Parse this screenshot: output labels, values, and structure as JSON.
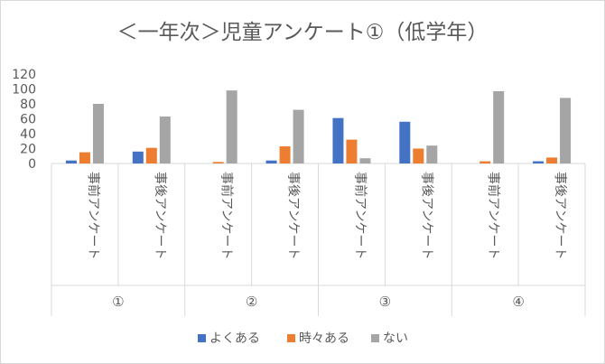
{
  "chart_data": {
    "type": "bar",
    "title": "＜一年次＞児童アンケート①（低学年）",
    "xlabel": "",
    "ylabel": "",
    "ylim": [
      0,
      120
    ],
    "yticks": [
      0,
      20,
      40,
      60,
      80,
      100,
      120
    ],
    "grid": false,
    "legend_position": "bottom",
    "groups": [
      "①",
      "②",
      "③",
      "④"
    ],
    "categories": [
      "事前アンケート",
      "事後アンケート",
      "事前アンケート",
      "事後アンケート",
      "事前アンケート",
      "事後アンケート",
      "事前アンケート",
      "事後アンケート"
    ],
    "series": [
      {
        "name": "よくある",
        "color": "#4472c4",
        "values": [
          4,
          16,
          0,
          4,
          61,
          56,
          0,
          3
        ]
      },
      {
        "name": "時々ある",
        "color": "#ed7d31",
        "values": [
          15,
          21,
          2,
          23,
          32,
          20,
          3,
          8
        ]
      },
      {
        "name": "ない",
        "color": "#a5a5a5",
        "values": [
          80,
          63,
          98,
          72,
          7,
          24,
          97,
          88
        ]
      }
    ]
  }
}
